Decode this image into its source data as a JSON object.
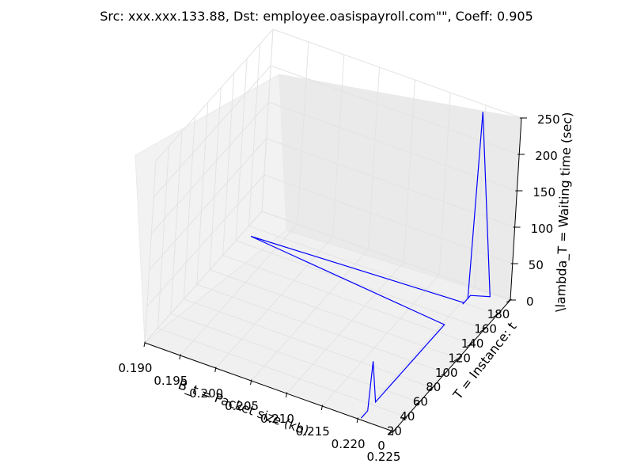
{
  "chart_data": {
    "type": "line",
    "projection": "3d",
    "title": "Src: xxx.xxx.133.88, Dst: employee.oasispayroll.com\"\", Coeff: 0.905",
    "xlabel": "B_t = Packet size (kb)",
    "ylabel": "T = Instance: t",
    "zlabel": "\\lambda_T = Waiting time (sec)",
    "xlim": [
      0.19,
      0.225
    ],
    "ylim": [
      0,
      180
    ],
    "zlim": [
      0,
      250
    ],
    "xticks": [
      "0.190",
      "0.195",
      "0.200",
      "0.205",
      "0.210",
      "0.215",
      "0.220",
      "0.225"
    ],
    "yticks": [
      "0",
      "20",
      "40",
      "60",
      "80",
      "100",
      "120",
      "140",
      "160",
      "180"
    ],
    "zticks": [
      "0",
      "50",
      "100",
      "150",
      "200",
      "250"
    ],
    "grid": true,
    "line_color": "#0000ff",
    "series": [
      {
        "x": [
          0.2203,
          0.2203,
          0.2203,
          0.2203,
          0.2203,
          0.2203,
          0.2203,
          0.2203,
          0.2203,
          0.2203,
          0.2203,
          0.2203,
          0.2203,
          0.2203,
          0.2203,
          0.2203,
          0.2203,
          0.1912,
          0.2203,
          0.2203,
          0.2225,
          0.2203,
          0.2203,
          0.2203
        ],
        "y": [
          2,
          5,
          12,
          16,
          24,
          28,
          34,
          38,
          48,
          56,
          66,
          80,
          94,
          104,
          112,
          120,
          130,
          150,
          160,
          170,
          176,
          172,
          166,
          158
        ],
        "z": [
          0,
          0,
          0,
          64,
          0,
          0,
          0,
          0,
          0,
          0,
          0,
          0,
          0,
          0,
          0,
          0,
          0,
          0,
          0,
          0,
          0,
          250,
          0,
          0
        ]
      }
    ]
  }
}
